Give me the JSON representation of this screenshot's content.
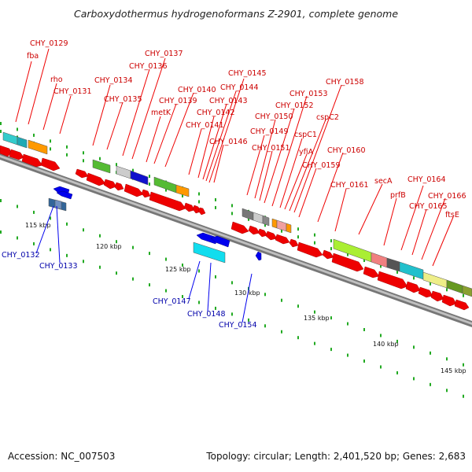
{
  "title": "Carboxydothermus hydrogenoformans Z-2901, complete genome",
  "footer": {
    "accession": "Accession: NC_007503",
    "topology": "Topology: circular; Length: 2,401,520 bp; Genes: 2,683"
  },
  "axis_ticks": [
    "115 kbp",
    "120 kbp",
    "125 kbp",
    "130 kbp",
    "135 kbp",
    "140 kbp",
    "145 kbp"
  ],
  "forward_labels": [
    "CHY_0129",
    "fba",
    "rho",
    "CHY_0131",
    "CHY_0134",
    "CHY_0135",
    "CHY_0136",
    "CHY_0137",
    "metK",
    "CHY_0139",
    "CHY_0140",
    "CHY_0141",
    "CHY_0142",
    "CHY_0143",
    "CHY_0144",
    "CHY_0145",
    "CHY_0146",
    "CHY_0149",
    "CHY_0150",
    "CHY_0151",
    "CHY_0152",
    "CHY_0153",
    "cspC1",
    "cspC2",
    "yfiA",
    "CHY_0158",
    "CHY_0159",
    "CHY_0160",
    "CHY_0161",
    "secA",
    "prfB",
    "CHY_0164",
    "CHY_0165",
    "CHY_0166",
    "ftsE"
  ],
  "reverse_labels": [
    "CHY_0132",
    "CHY_0133",
    "CHY_0147",
    "CHY_0148",
    "CHY_0154"
  ],
  "colors": {
    "forward": "#ee0000",
    "reverse": "#0000ee",
    "backbone": "#888888",
    "tick": "#22aa22"
  }
}
